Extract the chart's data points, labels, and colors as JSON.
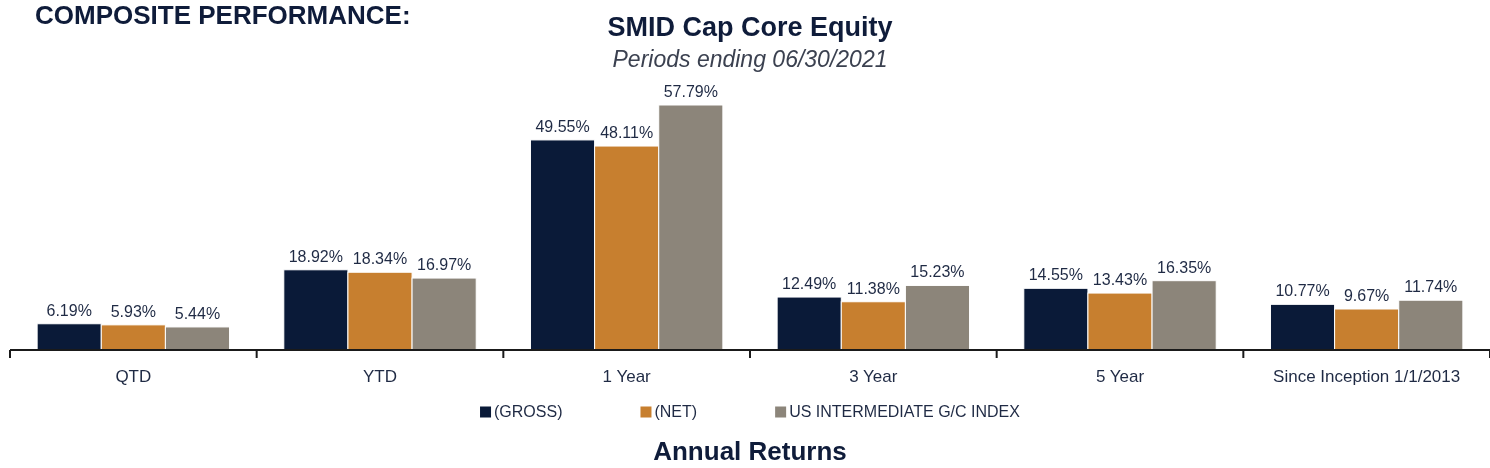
{
  "chart_data": {
    "type": "bar",
    "title": "SMID Cap Core Equity",
    "subtitle": "Periods ending 06/30/2021",
    "categories": [
      "QTD",
      "YTD",
      "1 Year",
      "3 Year",
      "5 Year",
      "Since Inception 1/1/2013"
    ],
    "series": [
      {
        "name": "(GROSS)",
        "color": "#0a1a38",
        "values": [
          6.19,
          18.92,
          49.55,
          12.49,
          14.55,
          10.77
        ],
        "value_labels": [
          "6.19%",
          "18.92%",
          "49.55%",
          "12.49%",
          "14.55%",
          "10.77%"
        ]
      },
      {
        "name": "(NET)",
        "color": "#c77f2f",
        "values": [
          5.93,
          18.34,
          48.11,
          11.38,
          13.43,
          9.67
        ],
        "value_labels": [
          "5.93%",
          "18.34%",
          "48.11%",
          "11.38%",
          "13.43%",
          "9.67%"
        ]
      },
      {
        "name": "US INTERMEDIATE G/C INDEX",
        "color": "#8c857a",
        "values": [
          5.44,
          16.97,
          57.79,
          15.23,
          16.35,
          11.74
        ],
        "value_labels": [
          "5.44%",
          "16.97%",
          "57.79%",
          "15.23%",
          "16.35%",
          "11.74%"
        ]
      }
    ],
    "legend": "bottom",
    "annotations": [
      "COMPOSITE PERFORMANCE:",
      "Annual Returns"
    ]
  }
}
